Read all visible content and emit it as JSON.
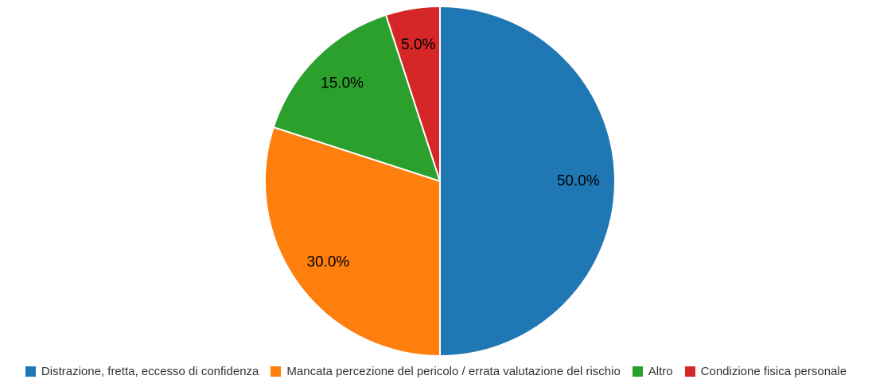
{
  "chart_data": {
    "type": "pie",
    "labels": [
      "Distrazione, fretta, eccesso di confidenza",
      "Mancata percezione del pericolo / errata valutazione del rischio",
      "Altro",
      "Condizione fisica personale"
    ],
    "values": [
      50.0,
      30.0,
      15.0,
      5.0
    ],
    "slice_labels": [
      "50.0%",
      "30.0%",
      "15.0%",
      "5.0%"
    ],
    "colors": [
      "#1f77b4",
      "#ff7f0e",
      "#2ca02c",
      "#d62728"
    ],
    "start_angle_deg": 0,
    "direction": "clockwise",
    "slice_border_color": "#ffffff",
    "label_color": "#000000",
    "label_radius_ratio": 0.79,
    "legend_position": "bottom",
    "legend_text_color": "#333333",
    "title": "",
    "grid": false
  }
}
